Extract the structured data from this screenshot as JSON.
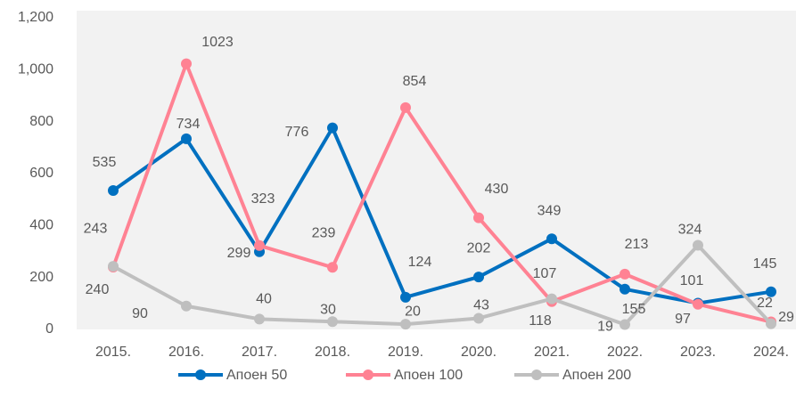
{
  "chart_data": {
    "type": "line",
    "categories": [
      "2015.",
      "2016.",
      "2017.",
      "2018.",
      "2019.",
      "2020.",
      "2021.",
      "2022.",
      "2023.",
      "2024."
    ],
    "series": [
      {
        "name": "Апоен 50",
        "color": "#0070c0",
        "values": [
          535,
          734,
          299,
          776,
          124,
          202,
          349,
          155,
          101,
          145
        ]
      },
      {
        "name": "Апоен 100",
        "color": "#ff8293",
        "values": [
          240,
          1023,
          323,
          239,
          854,
          430,
          107,
          213,
          97,
          29
        ]
      },
      {
        "name": "Апоен 200",
        "color": "#bfbfbf",
        "values": [
          243,
          90,
          40,
          30,
          20,
          43,
          118,
          19,
          324,
          22
        ]
      }
    ],
    "ylim": [
      0,
      1200
    ],
    "yticks": [
      0,
      200,
      400,
      600,
      800,
      {
        "value": 1000,
        "label": "1,000"
      },
      {
        "value": 1200,
        "label": "1,200"
      }
    ],
    "legend": "bottom"
  }
}
